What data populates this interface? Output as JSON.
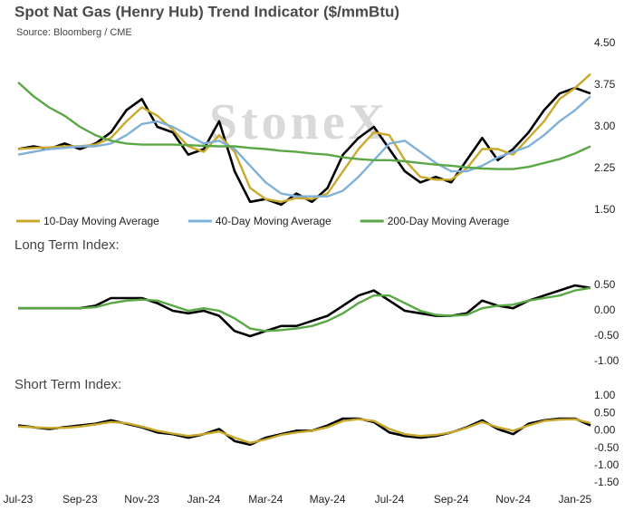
{
  "chart_data": [
    {
      "type": "line",
      "title": "Spot Nat Gas (Henry Hub) Trend Indicator ($/mmBtu)",
      "subtitle": "Source: Bloomberg / CME",
      "watermark": "StoneX",
      "ylim": [
        1.5,
        4.5
      ],
      "yticks": [
        {
          "value": 1.5,
          "label": "1.50"
        },
        {
          "value": 2.25,
          "label": "2.25"
        },
        {
          "value": 3,
          "label": "3.00"
        },
        {
          "value": 3.75,
          "label": "3.75"
        },
        {
          "value": 4.5,
          "label": "4.50"
        }
      ],
      "grid": false,
      "legend": "bottom",
      "series": [
        {
          "color": "#000000",
          "values": [
            2.6,
            2.65,
            2.6,
            2.7,
            2.6,
            2.7,
            2.9,
            3.3,
            3.5,
            3.0,
            2.9,
            2.5,
            2.6,
            3.1,
            2.2,
            1.65,
            1.7,
            1.6,
            1.8,
            1.65,
            1.9,
            2.5,
            2.8,
            3.0,
            2.6,
            2.2,
            2.0,
            2.1,
            2.0,
            2.4,
            2.8,
            2.4,
            2.6,
            2.9,
            3.3,
            3.6,
            3.7,
            3.6
          ]
        },
        {
          "name": "10-Day Moving Average",
          "color": "#c9a92c",
          "values": [
            2.6,
            2.62,
            2.63,
            2.65,
            2.65,
            2.68,
            2.8,
            3.1,
            3.35,
            3.2,
            2.95,
            2.65,
            2.55,
            2.85,
            2.55,
            1.9,
            1.7,
            1.65,
            1.72,
            1.7,
            1.8,
            2.2,
            2.6,
            2.9,
            2.85,
            2.4,
            2.1,
            2.05,
            2.05,
            2.25,
            2.6,
            2.6,
            2.5,
            2.8,
            3.1,
            3.5,
            3.7,
            3.95
          ]
        },
        {
          "name": "40-Day Moving Average",
          "color": "#7fb1d9",
          "values": [
            2.5,
            2.55,
            2.6,
            2.62,
            2.65,
            2.65,
            2.7,
            2.85,
            3.05,
            3.1,
            3.0,
            2.85,
            2.7,
            2.75,
            2.6,
            2.3,
            2.0,
            1.8,
            1.75,
            1.75,
            1.75,
            1.85,
            2.1,
            2.4,
            2.7,
            2.75,
            2.55,
            2.35,
            2.2,
            2.2,
            2.3,
            2.45,
            2.55,
            2.65,
            2.85,
            3.1,
            3.3,
            3.55
          ]
        },
        {
          "name": "200-Day Moving Average",
          "color": "#5aa845",
          "values": [
            3.8,
            3.55,
            3.35,
            3.2,
            3.0,
            2.85,
            2.75,
            2.7,
            2.68,
            2.68,
            2.68,
            2.67,
            2.66,
            2.65,
            2.65,
            2.62,
            2.6,
            2.57,
            2.55,
            2.52,
            2.5,
            2.45,
            2.42,
            2.4,
            2.4,
            2.38,
            2.35,
            2.32,
            2.3,
            2.27,
            2.25,
            2.24,
            2.24,
            2.28,
            2.35,
            2.42,
            2.52,
            2.65
          ]
        }
      ]
    },
    {
      "type": "line",
      "title": "Long Term Index:",
      "ylim": [
        -1,
        0.6
      ],
      "yticks": [
        {
          "value": -1,
          "label": "-1.00"
        },
        {
          "value": -0.5,
          "label": "-0.50"
        },
        {
          "value": 0,
          "label": "0.00"
        },
        {
          "value": 0.5,
          "label": "0.50"
        }
      ],
      "grid": false,
      "series": [
        {
          "color": "#000000",
          "values": [
            0.05,
            0.05,
            0.05,
            0.05,
            0.05,
            0.1,
            0.25,
            0.25,
            0.25,
            0.15,
            0.0,
            -0.05,
            0.0,
            -0.1,
            -0.4,
            -0.5,
            -0.4,
            -0.3,
            -0.3,
            -0.2,
            -0.1,
            0.1,
            0.3,
            0.4,
            0.2,
            0.0,
            -0.05,
            -0.1,
            -0.1,
            -0.05,
            0.2,
            0.1,
            0.05,
            0.2,
            0.3,
            0.4,
            0.5,
            0.45
          ]
        },
        {
          "color": "#5aa845",
          "values": [
            0.05,
            0.05,
            0.05,
            0.05,
            0.05,
            0.07,
            0.15,
            0.2,
            0.22,
            0.2,
            0.1,
            0.0,
            0.05,
            0.0,
            -0.15,
            -0.35,
            -0.4,
            -0.38,
            -0.35,
            -0.3,
            -0.2,
            -0.05,
            0.15,
            0.3,
            0.3,
            0.15,
            0.0,
            -0.08,
            -0.1,
            -0.08,
            0.05,
            0.1,
            0.12,
            0.2,
            0.25,
            0.3,
            0.4,
            0.45
          ]
        }
      ]
    },
    {
      "type": "line",
      "title": "Short Term Index:",
      "ylim": [
        -1.5,
        1
      ],
      "yticks": [
        {
          "value": -1.5,
          "label": "-1.50"
        },
        {
          "value": -1,
          "label": "-1.00"
        },
        {
          "value": -0.5,
          "label": "-0.50"
        },
        {
          "value": 0,
          "label": "0.00"
        },
        {
          "value": 0.5,
          "label": "0.50"
        },
        {
          "value": 1,
          "label": "1.00"
        }
      ],
      "grid": false,
      "categories": [
        "Jul-23",
        null,
        null,
        null,
        "Sep-23",
        null,
        null,
        null,
        "Nov-23",
        null,
        null,
        null,
        "Jan-24",
        null,
        null,
        null,
        "Mar-24",
        null,
        null,
        null,
        "May-24",
        null,
        null,
        null,
        "Jul-24",
        null,
        null,
        null,
        "Sep-24",
        null,
        null,
        null,
        "Nov-24",
        null,
        null,
        null,
        "Jan-25",
        null
      ],
      "series": [
        {
          "color": "#000000",
          "values": [
            0.15,
            0.1,
            0.05,
            0.1,
            0.15,
            0.2,
            0.3,
            0.2,
            0.1,
            -0.05,
            -0.1,
            -0.2,
            -0.1,
            0.05,
            -0.3,
            -0.4,
            -0.2,
            -0.1,
            0.0,
            0.0,
            0.15,
            0.35,
            0.35,
            0.25,
            -0.05,
            -0.15,
            -0.2,
            -0.15,
            -0.05,
            0.1,
            0.3,
            0.05,
            -0.1,
            0.2,
            0.3,
            0.35,
            0.35,
            0.15
          ]
        },
        {
          "color": "#c9a92c",
          "values": [
            0.12,
            0.1,
            0.08,
            0.08,
            0.12,
            0.18,
            0.25,
            0.22,
            0.12,
            0.0,
            -0.08,
            -0.15,
            -0.1,
            -0.02,
            -0.2,
            -0.35,
            -0.25,
            -0.12,
            -0.05,
            0.0,
            0.1,
            0.28,
            0.33,
            0.28,
            0.05,
            -0.1,
            -0.15,
            -0.12,
            -0.05,
            0.08,
            0.25,
            0.1,
            0.0,
            0.15,
            0.28,
            0.32,
            0.33,
            0.22
          ]
        }
      ]
    }
  ]
}
